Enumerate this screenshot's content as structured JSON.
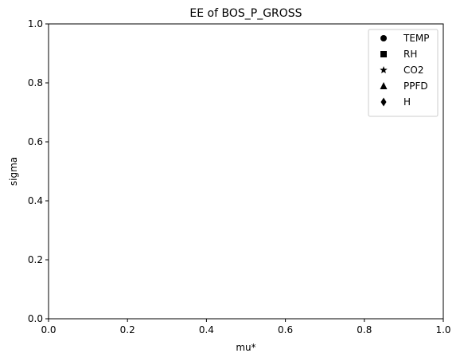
{
  "chart_data": {
    "type": "scatter",
    "title": "EE of BOS_P_GROSS",
    "xlabel": "mu*",
    "ylabel": "sigma",
    "xlim": [
      0.0,
      1.0
    ],
    "ylim": [
      0.0,
      1.0
    ],
    "xticks": [
      "0.0",
      "0.2",
      "0.4",
      "0.6",
      "0.8",
      "1.0"
    ],
    "yticks": [
      "0.0",
      "0.2",
      "0.4",
      "0.6",
      "0.8",
      "1.0"
    ],
    "grid": false,
    "legend_position": "top-right",
    "series": [
      {
        "name": "TEMP",
        "marker": "circle-icon",
        "color": "#000000",
        "points": []
      },
      {
        "name": "RH",
        "marker": "square-icon",
        "color": "#000000",
        "points": []
      },
      {
        "name": "CO2",
        "marker": "star-icon",
        "color": "#000000",
        "points": []
      },
      {
        "name": "PPFD",
        "marker": "triangle-icon",
        "color": "#000000",
        "points": []
      },
      {
        "name": "H",
        "marker": "diamond-icon",
        "color": "#000000",
        "points": []
      }
    ]
  }
}
